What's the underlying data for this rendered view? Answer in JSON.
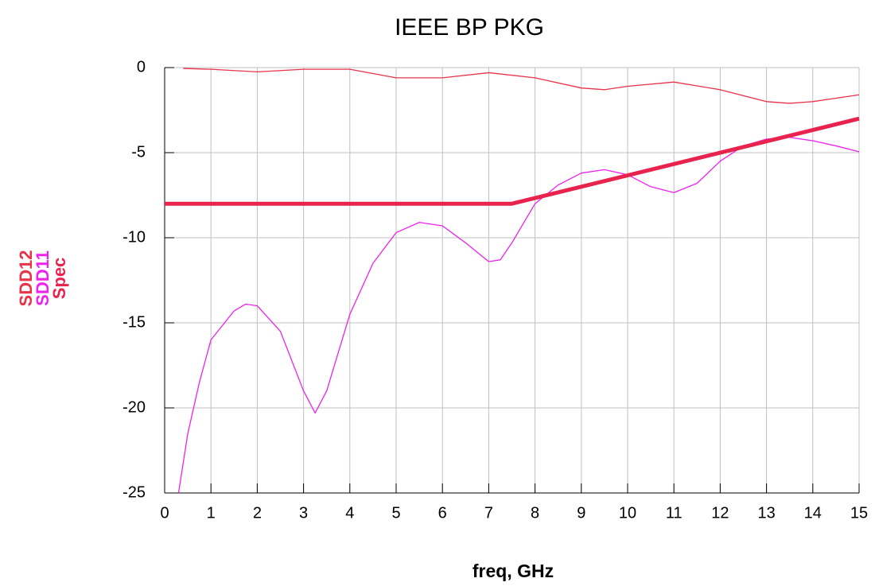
{
  "chart_data": {
    "type": "line",
    "title": "IEEE BP PKG",
    "xlabel": "freq, GHz",
    "xlim": [
      0,
      15
    ],
    "xticks": [
      0,
      1,
      2,
      3,
      4,
      5,
      6,
      7,
      8,
      9,
      10,
      11,
      12,
      13,
      14,
      15
    ],
    "ylim": [
      -25,
      0
    ],
    "yticks": [
      -25,
      -20,
      -15,
      -10,
      -5,
      0
    ],
    "grid": true,
    "series": [
      {
        "name": "SDD12",
        "color": "#e8334a",
        "width": 1.3,
        "x": [
          0.4,
          1,
          2,
          3,
          4,
          5,
          6,
          7,
          8,
          9,
          9.5,
          10,
          11,
          12,
          13,
          13.5,
          14,
          15
        ],
        "values": [
          -0.05,
          -0.1,
          -0.25,
          -0.1,
          -0.1,
          -0.6,
          -0.6,
          -0.3,
          -0.6,
          -1.2,
          -1.3,
          -1.1,
          -0.85,
          -1.3,
          -2.0,
          -2.1,
          -2.0,
          -1.6
        ]
      },
      {
        "name": "SDD11",
        "color": "#ee22ee",
        "width": 1.3,
        "x": [
          0.3,
          0.5,
          0.75,
          1,
          1.5,
          1.75,
          2,
          2.5,
          3,
          3.25,
          3.5,
          4,
          4.5,
          5,
          5.5,
          6,
          6.5,
          7,
          7.25,
          7.5,
          8,
          8.5,
          9,
          9.5,
          10,
          10.5,
          11,
          11.5,
          12,
          12.5,
          13,
          13.5,
          14,
          14.5,
          15
        ],
        "values": [
          -25,
          -21.5,
          -18.5,
          -16,
          -14.3,
          -13.9,
          -14,
          -15.5,
          -19,
          -20.3,
          -19,
          -14.5,
          -11.5,
          -9.7,
          -9.1,
          -9.3,
          -10.3,
          -11.4,
          -11.3,
          -10.3,
          -8,
          -6.9,
          -6.2,
          -6.0,
          -6.3,
          -7.0,
          -7.35,
          -6.8,
          -5.5,
          -4.6,
          -4.2,
          -4.1,
          -4.3,
          -4.6,
          -4.95
        ]
      },
      {
        "name": "Spec",
        "color": "#e8234e",
        "width": 5,
        "x": [
          0,
          7.5,
          15
        ],
        "values": [
          -8,
          -8,
          -3
        ]
      }
    ]
  }
}
